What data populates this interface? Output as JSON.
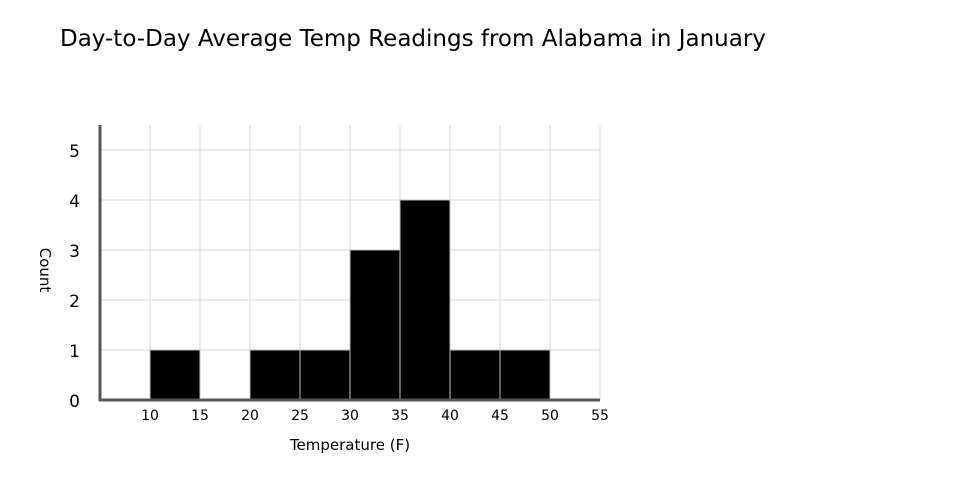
{
  "chart_data": {
    "type": "bar",
    "title": "Day-to-Day Average Temp Readings from Alabama in January",
    "xlabel": "Temperature (F)",
    "ylabel": "Count",
    "bins": [
      {
        "from": 5,
        "to": 10,
        "count": 0
      },
      {
        "from": 10,
        "to": 15,
        "count": 1
      },
      {
        "from": 15,
        "to": 20,
        "count": 0
      },
      {
        "from": 20,
        "to": 25,
        "count": 1
      },
      {
        "from": 25,
        "to": 30,
        "count": 1
      },
      {
        "from": 30,
        "to": 35,
        "count": 3
      },
      {
        "from": 35,
        "to": 40,
        "count": 4
      },
      {
        "from": 40,
        "to": 45,
        "count": 1
      },
      {
        "from": 45,
        "to": 50,
        "count": 1
      },
      {
        "from": 50,
        "to": 55,
        "count": 0
      }
    ],
    "xlim": [
      5,
      55
    ],
    "ylim": [
      0,
      5.5
    ],
    "x_ticks": [
      "10",
      "15",
      "20",
      "25",
      "30",
      "35",
      "40",
      "45",
      "50",
      "55"
    ],
    "y_ticks": [
      "0",
      "1",
      "2",
      "3",
      "4",
      "5"
    ],
    "grid": true,
    "bar_color": "#000000",
    "grid_color": "#d9d9d9",
    "axis_color": "#555555"
  }
}
